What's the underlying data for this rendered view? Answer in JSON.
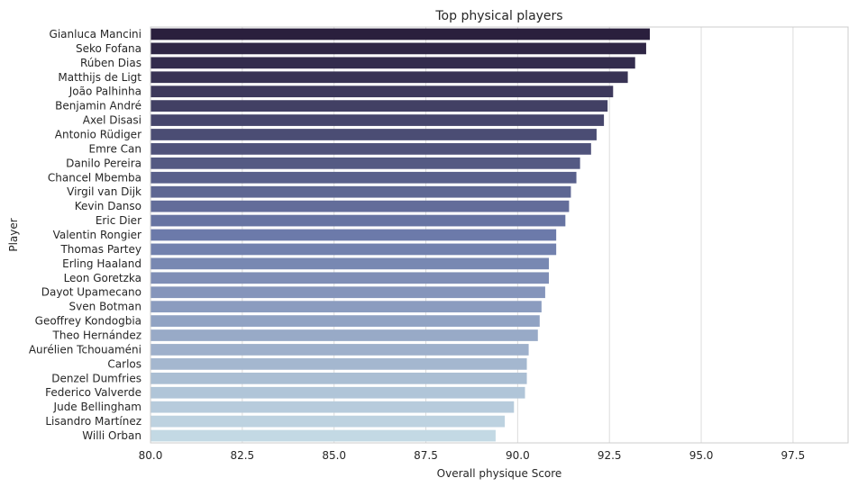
{
  "chart_data": {
    "type": "bar",
    "orientation": "horizontal",
    "title": "Top physical players",
    "xlabel": "Overall physique Score",
    "ylabel": "Player",
    "xlim": [
      80.0,
      99.0
    ],
    "xticks": [
      "80.0",
      "82.5",
      "85.0",
      "87.5",
      "90.0",
      "92.5",
      "95.0",
      "97.5"
    ],
    "grid": "vertical",
    "categories": [
      "Gianluca Mancini",
      "Seko Fofana",
      "Rúben Dias",
      "Matthijs de Ligt",
      "João Palhinha",
      "Benjamin André",
      "Axel Disasi",
      "Antonio Rüdiger",
      "Emre Can",
      "Danilo Pereira",
      "Chancel Mbemba",
      "Virgil van Dijk",
      "Kevin Danso",
      "Eric Dier",
      "Valentin Rongier",
      "Thomas Partey",
      "Erling Haaland",
      "Leon Goretzka",
      "Dayot Upamecano",
      "Sven Botman",
      "Geoffrey Kondogbia",
      "Theo Hernández",
      "Aurélien Tchouaméni",
      "Carlos",
      "Denzel Dumfries",
      "Federico Valverde",
      "Jude Bellingham",
      "Lisandro Martínez",
      "Willi Orban"
    ],
    "values": [
      93.6,
      93.5,
      93.2,
      93.0,
      92.6,
      92.45,
      92.35,
      92.15,
      92.0,
      91.7,
      91.6,
      91.45,
      91.4,
      91.3,
      91.05,
      91.05,
      90.85,
      90.85,
      90.75,
      90.65,
      90.6,
      90.55,
      90.3,
      90.25,
      90.25,
      90.2,
      89.9,
      89.65,
      89.4
    ],
    "palette": {
      "dark": "#2a1f3d",
      "mid": "#6c7aaa",
      "light": "#c3d9e4"
    },
    "colors": {
      "grid": "#dcdcdc",
      "frame": "#cccccc"
    }
  }
}
